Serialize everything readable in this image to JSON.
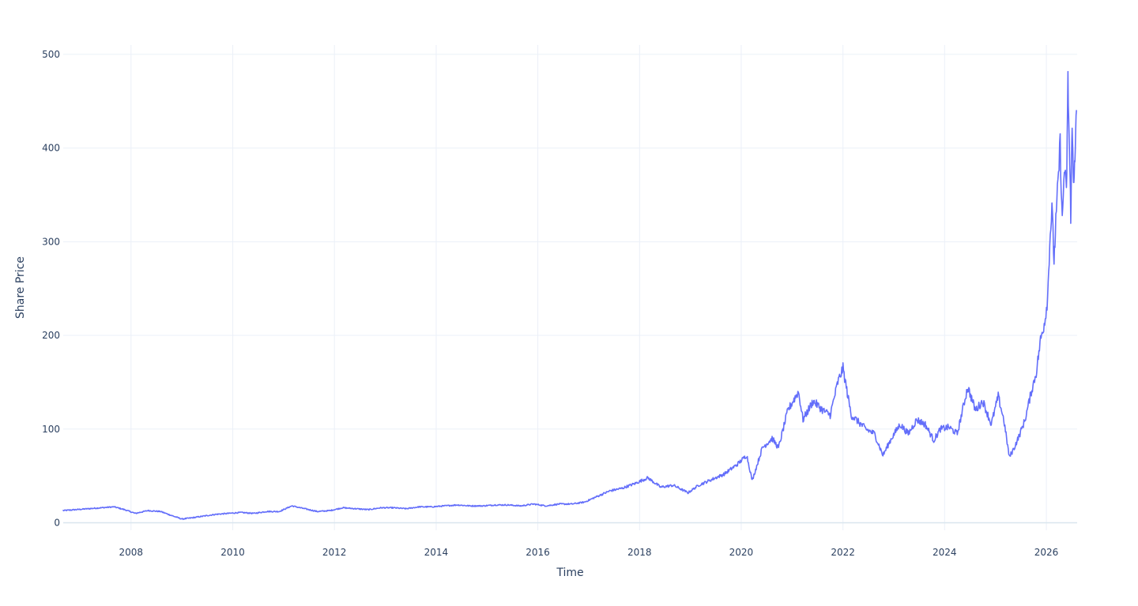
{
  "chart_data": {
    "type": "line",
    "title": "",
    "xlabel": "Time",
    "ylabel": "Share Price",
    "x_type": "date",
    "xlim": [
      "2006-09-01",
      "2026-08-10"
    ],
    "ylim": [
      -8,
      510
    ],
    "x_ticks": [
      "2008",
      "2010",
      "2012",
      "2014",
      "2016",
      "2018",
      "2020",
      "2022",
      "2024",
      "2026"
    ],
    "y_ticks": [
      0,
      100,
      200,
      300,
      400,
      500
    ],
    "grid": true,
    "legend": "none",
    "line_color": "#636efa",
    "series": [
      {
        "name": "",
        "x": [
          "2006-09-01",
          "2006-12-01",
          "2007-03-01",
          "2007-06-01",
          "2007-09-01",
          "2007-11-15",
          "2008-02-01",
          "2008-05-01",
          "2008-08-01",
          "2008-11-01",
          "2009-01-01",
          "2009-03-01",
          "2009-06-01",
          "2009-09-01",
          "2009-12-01",
          "2010-03-01",
          "2010-06-01",
          "2010-09-01",
          "2010-12-01",
          "2011-03-01",
          "2011-06-01",
          "2011-09-01",
          "2011-12-01",
          "2012-03-01",
          "2012-06-01",
          "2012-09-01",
          "2012-12-01",
          "2013-03-01",
          "2013-06-01",
          "2013-09-01",
          "2013-12-01",
          "2014-03-01",
          "2014-06-01",
          "2014-09-01",
          "2014-12-01",
          "2015-03-01",
          "2015-06-01",
          "2015-09-01",
          "2015-12-01",
          "2016-03-01",
          "2016-06-01",
          "2016-09-01",
          "2016-12-01",
          "2017-03-01",
          "2017-06-01",
          "2017-09-01",
          "2017-12-01",
          "2018-03-01",
          "2018-06-01",
          "2018-09-01",
          "2018-12-15",
          "2019-03-01",
          "2019-06-01",
          "2019-09-01",
          "2019-12-01",
          "2020-02-10",
          "2020-03-20",
          "2020-06-01",
          "2020-08-10",
          "2020-09-25",
          "2020-12-01",
          "2021-02-15",
          "2021-03-20",
          "2021-06-01",
          "2021-08-10",
          "2021-10-01",
          "2021-11-25",
          "2022-01-01",
          "2022-03-01",
          "2022-06-15",
          "2022-08-15",
          "2022-10-15",
          "2022-12-15",
          "2023-02-15",
          "2023-04-15",
          "2023-06-15",
          "2023-08-15",
          "2023-10-15",
          "2023-12-01",
          "2024-02-01",
          "2024-04-01",
          "2024-06-15",
          "2024-08-10",
          "2024-10-01",
          "2024-12-01",
          "2025-01-20",
          "2025-03-01",
          "2025-04-10",
          "2025-05-15",
          "2025-06-25",
          "2025-08-01",
          "2025-09-15",
          "2025-10-20",
          "2025-11-20",
          "2025-12-20",
          "2026-01-10",
          "2026-01-25",
          "2026-02-10",
          "2026-02-25",
          "2026-03-10",
          "2026-03-25",
          "2026-04-10",
          "2026-04-25",
          "2026-05-10",
          "2026-05-25",
          "2026-06-05",
          "2026-06-15",
          "2026-06-25",
          "2026-07-05",
          "2026-07-15",
          "2026-07-25",
          "2026-08-05"
        ],
        "values": [
          13,
          14,
          15,
          16,
          17,
          14,
          10,
          13,
          12,
          7,
          4,
          5,
          7,
          9,
          10,
          11,
          10,
          12,
          12,
          18,
          15,
          12,
          13,
          16,
          15,
          14,
          16,
          16,
          15,
          17,
          17,
          18,
          19,
          18,
          18,
          19,
          19,
          18,
          20,
          18,
          20,
          20,
          22,
          28,
          34,
          37,
          42,
          48,
          38,
          40,
          32,
          40,
          46,
          52,
          62,
          72,
          45,
          80,
          90,
          80,
          120,
          140,
          110,
          130,
          120,
          115,
          150,
          165,
          115,
          100,
          95,
          72,
          90,
          105,
          95,
          110,
          105,
          88,
          100,
          102,
          95,
          145,
          120,
          130,
          105,
          135,
          110,
          70,
          80,
          95,
          110,
          140,
          160,
          195,
          215,
          240,
          300,
          335,
          280,
          320,
          360,
          405,
          320,
          380,
          350,
          470,
          400,
          330,
          420,
          370,
          380,
          440
        ]
      }
    ]
  }
}
